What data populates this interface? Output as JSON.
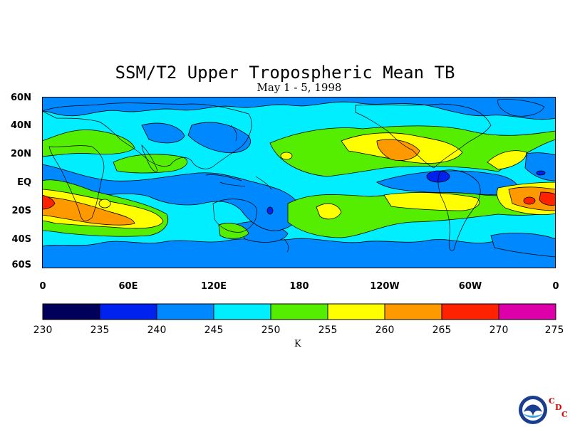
{
  "figure": {
    "title": "SSM/T2 Upper Tropospheric Mean TB",
    "subtitle": "May 1 - 5, 1998",
    "unit_label": "K",
    "logo_text": [
      "C",
      "D",
      "C"
    ]
  },
  "axes": {
    "lat_labels": [
      "60N",
      "40N",
      "20N",
      "EQ",
      "20S",
      "40S",
      "60S"
    ],
    "lon_labels": [
      "0",
      "60E",
      "120E",
      "180",
      "120W",
      "60W",
      "0"
    ]
  },
  "colorbar": {
    "ticks": [
      "230",
      "235",
      "240",
      "245",
      "250",
      "255",
      "260",
      "265",
      "270",
      "275"
    ],
    "colors": [
      "#00005a",
      "#0022ee",
      "#0088ff",
      "#00eeff",
      "#55ee00",
      "#ffff00",
      "#ff9900",
      "#ff2200",
      "#dd00aa"
    ]
  },
  "chart_data": {
    "type": "heatmap",
    "title": "SSM/T2 Upper Tropospheric Mean TB",
    "subtitle": "May 1 - 5, 1998",
    "xlabel": "",
    "ylabel": "",
    "colorbar_label": "K",
    "x_ticks": [
      "0",
      "60E",
      "120E",
      "180",
      "120W",
      "60W",
      "0"
    ],
    "y_ticks": [
      "60N",
      "40N",
      "20N",
      "EQ",
      "20S",
      "40S",
      "60S"
    ],
    "value_range": [
      230,
      275
    ],
    "contour_interval": 5,
    "background_value_range": [
      245,
      250
    ],
    "regions": [
      {
        "lon_range": [
          0,
          70
        ],
        "lat_range": [
          -30,
          -8
        ],
        "value_range": [
          255,
          265
        ],
        "peak": [
          265,
          270
        ]
      },
      {
        "lon_range": [
          290,
          360
        ],
        "lat_range": [
          -20,
          -6
        ],
        "value_range": [
          255,
          265
        ],
        "peak": [
          265,
          270
        ]
      },
      {
        "lon_range": [
          210,
          280
        ],
        "lat_range": [
          12,
          35
        ],
        "value_range": [
          255,
          260
        ],
        "peak": [
          260,
          265
        ]
      },
      {
        "lon_range": [
          130,
          200
        ],
        "lat_range": [
          -10,
          20
        ],
        "value_range": [
          240,
          245
        ]
      },
      {
        "lon_range": [
          270,
          290
        ],
        "lat_range": [
          2,
          10
        ],
        "value_range": [
          235,
          240
        ]
      },
      {
        "lon_range": [
          0,
          360
        ],
        "lat_range": [
          -60,
          -45
        ],
        "value_range": [
          240,
          245
        ]
      }
    ]
  }
}
